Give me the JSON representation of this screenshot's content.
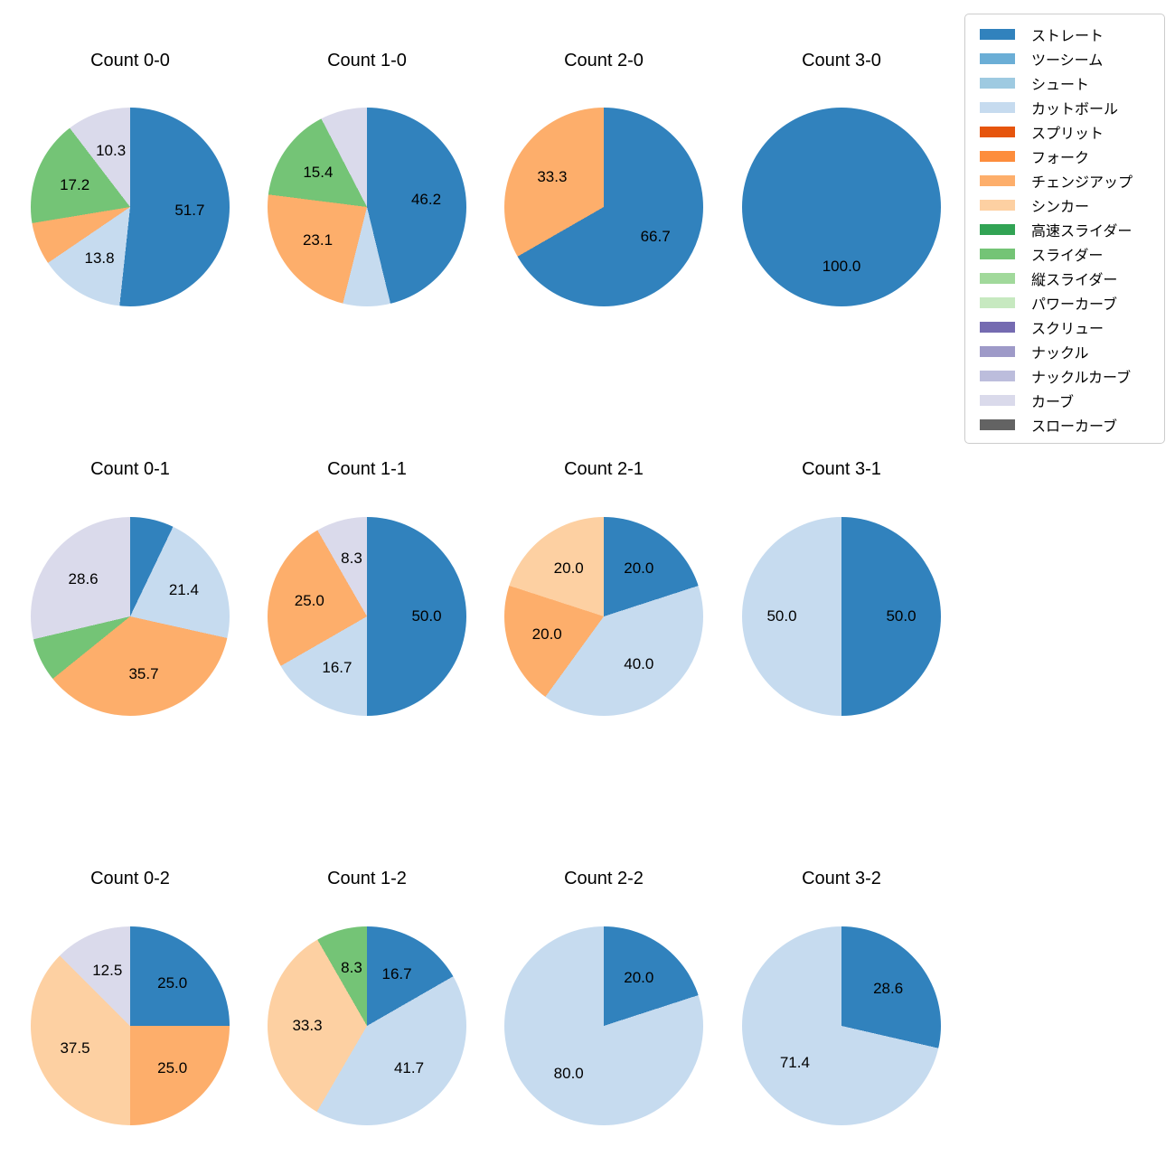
{
  "figure": {
    "background": "#ffffff"
  },
  "legend": {
    "border_color": "#cccccc",
    "position": "top-right",
    "items": [
      {
        "label": "ストレート",
        "color": "#3182bd"
      },
      {
        "label": "ツーシーム",
        "color": "#6baed6"
      },
      {
        "label": "シュート",
        "color": "#9ecae1"
      },
      {
        "label": "カットボール",
        "color": "#c6dbef"
      },
      {
        "label": "スプリット",
        "color": "#e6550d"
      },
      {
        "label": "フォーク",
        "color": "#fd8d3c"
      },
      {
        "label": "チェンジアップ",
        "color": "#fdae6b"
      },
      {
        "label": "シンカー",
        "color": "#fdd0a2"
      },
      {
        "label": "高速スライダー",
        "color": "#31a354"
      },
      {
        "label": "スライダー",
        "color": "#74c476"
      },
      {
        "label": "縦スライダー",
        "color": "#a1d99b"
      },
      {
        "label": "パワーカーブ",
        "color": "#c7e9c0"
      },
      {
        "label": "スクリュー",
        "color": "#756bb1"
      },
      {
        "label": "ナックル",
        "color": "#9e9ac8"
      },
      {
        "label": "ナックルカーブ",
        "color": "#bcbddc"
      },
      {
        "label": "カーブ",
        "color": "#dadaeb"
      },
      {
        "label": "スローカーブ",
        "color": "#636363"
      }
    ]
  },
  "chart_data": [
    {
      "type": "pie",
      "title": "Count 0-0",
      "start": "top",
      "direction": "clockwise",
      "label_min_pct": 8,
      "pct_label_distance": 0.6,
      "slices": [
        {
          "label": "ストレート",
          "value": 51.7,
          "color": "#3182bd"
        },
        {
          "label": "カットボール",
          "value": 13.8,
          "color": "#c6dbef"
        },
        {
          "label": "チェンジアップ",
          "value": 6.9,
          "color": "#fdae6b"
        },
        {
          "label": "スライダー",
          "value": 17.2,
          "color": "#74c476"
        },
        {
          "label": "カーブ",
          "value": 10.3,
          "color": "#dadaeb"
        }
      ]
    },
    {
      "type": "pie",
      "title": "Count 1-0",
      "start": "top",
      "direction": "clockwise",
      "label_min_pct": 8,
      "pct_label_distance": 0.6,
      "slices": [
        {
          "label": "ストレート",
          "value": 46.2,
          "color": "#3182bd"
        },
        {
          "label": "カットボール",
          "value": 7.7,
          "color": "#c6dbef"
        },
        {
          "label": "チェンジアップ",
          "value": 23.1,
          "color": "#fdae6b"
        },
        {
          "label": "スライダー",
          "value": 15.4,
          "color": "#74c476"
        },
        {
          "label": "カーブ",
          "value": 7.7,
          "color": "#dadaeb"
        }
      ]
    },
    {
      "type": "pie",
      "title": "Count 2-0",
      "start": "top",
      "direction": "clockwise",
      "label_min_pct": 8,
      "pct_label_distance": 0.6,
      "slices": [
        {
          "label": "ストレート",
          "value": 66.7,
          "color": "#3182bd"
        },
        {
          "label": "チェンジアップ",
          "value": 33.3,
          "color": "#fdae6b"
        }
      ]
    },
    {
      "type": "pie",
      "title": "Count 3-0",
      "start": "top",
      "direction": "clockwise",
      "label_min_pct": 8,
      "pct_label_distance": 0.6,
      "slices": [
        {
          "label": "ストレート",
          "value": 100.0,
          "color": "#3182bd"
        }
      ]
    },
    {
      "type": "pie",
      "title": "Count 0-1",
      "start": "top",
      "direction": "clockwise",
      "label_min_pct": 8,
      "pct_label_distance": 0.6,
      "slices": [
        {
          "label": "ストレート",
          "value": 7.1,
          "color": "#3182bd"
        },
        {
          "label": "カットボール",
          "value": 21.4,
          "color": "#c6dbef"
        },
        {
          "label": "チェンジアップ",
          "value": 35.7,
          "color": "#fdae6b"
        },
        {
          "label": "スライダー",
          "value": 7.1,
          "color": "#74c476"
        },
        {
          "label": "カーブ",
          "value": 28.6,
          "color": "#dadaeb"
        }
      ]
    },
    {
      "type": "pie",
      "title": "Count 1-1",
      "start": "top",
      "direction": "clockwise",
      "label_min_pct": 8,
      "pct_label_distance": 0.6,
      "slices": [
        {
          "label": "ストレート",
          "value": 50.0,
          "color": "#3182bd"
        },
        {
          "label": "カットボール",
          "value": 16.7,
          "color": "#c6dbef"
        },
        {
          "label": "チェンジアップ",
          "value": 25.0,
          "color": "#fdae6b"
        },
        {
          "label": "カーブ",
          "value": 8.3,
          "color": "#dadaeb"
        }
      ]
    },
    {
      "type": "pie",
      "title": "Count 2-1",
      "start": "top",
      "direction": "clockwise",
      "label_min_pct": 8,
      "pct_label_distance": 0.6,
      "slices": [
        {
          "label": "ストレート",
          "value": 20.0,
          "color": "#3182bd"
        },
        {
          "label": "カットボール",
          "value": 40.0,
          "color": "#c6dbef"
        },
        {
          "label": "チェンジアップ",
          "value": 20.0,
          "color": "#fdae6b"
        },
        {
          "label": "シンカー",
          "value": 20.0,
          "color": "#fdd0a2"
        }
      ]
    },
    {
      "type": "pie",
      "title": "Count 3-1",
      "start": "top",
      "direction": "clockwise",
      "label_min_pct": 8,
      "pct_label_distance": 0.6,
      "slices": [
        {
          "label": "ストレート",
          "value": 50.0,
          "color": "#3182bd"
        },
        {
          "label": "カットボール",
          "value": 50.0,
          "color": "#c6dbef"
        }
      ]
    },
    {
      "type": "pie",
      "title": "Count 0-2",
      "start": "top",
      "direction": "clockwise",
      "label_min_pct": 8,
      "pct_label_distance": 0.6,
      "slices": [
        {
          "label": "ストレート",
          "value": 25.0,
          "color": "#3182bd"
        },
        {
          "label": "チェンジアップ",
          "value": 25.0,
          "color": "#fdae6b"
        },
        {
          "label": "シンカー",
          "value": 37.5,
          "color": "#fdd0a2"
        },
        {
          "label": "カーブ",
          "value": 12.5,
          "color": "#dadaeb"
        }
      ]
    },
    {
      "type": "pie",
      "title": "Count 1-2",
      "start": "top",
      "direction": "clockwise",
      "label_min_pct": 8,
      "pct_label_distance": 0.6,
      "slices": [
        {
          "label": "ストレート",
          "value": 16.7,
          "color": "#3182bd"
        },
        {
          "label": "カットボール",
          "value": 41.7,
          "color": "#c6dbef"
        },
        {
          "label": "シンカー",
          "value": 33.3,
          "color": "#fdd0a2"
        },
        {
          "label": "スライダー",
          "value": 8.3,
          "color": "#74c476"
        }
      ]
    },
    {
      "type": "pie",
      "title": "Count 2-2",
      "start": "top",
      "direction": "clockwise",
      "label_min_pct": 8,
      "pct_label_distance": 0.6,
      "slices": [
        {
          "label": "ストレート",
          "value": 20.0,
          "color": "#3182bd"
        },
        {
          "label": "カットボール",
          "value": 80.0,
          "color": "#c6dbef"
        }
      ]
    },
    {
      "type": "pie",
      "title": "Count 3-2",
      "start": "top",
      "direction": "clockwise",
      "label_min_pct": 8,
      "pct_label_distance": 0.6,
      "slices": [
        {
          "label": "ストレート",
          "value": 28.6,
          "color": "#3182bd"
        },
        {
          "label": "カットボール",
          "value": 71.4,
          "color": "#c6dbef"
        }
      ]
    }
  ]
}
